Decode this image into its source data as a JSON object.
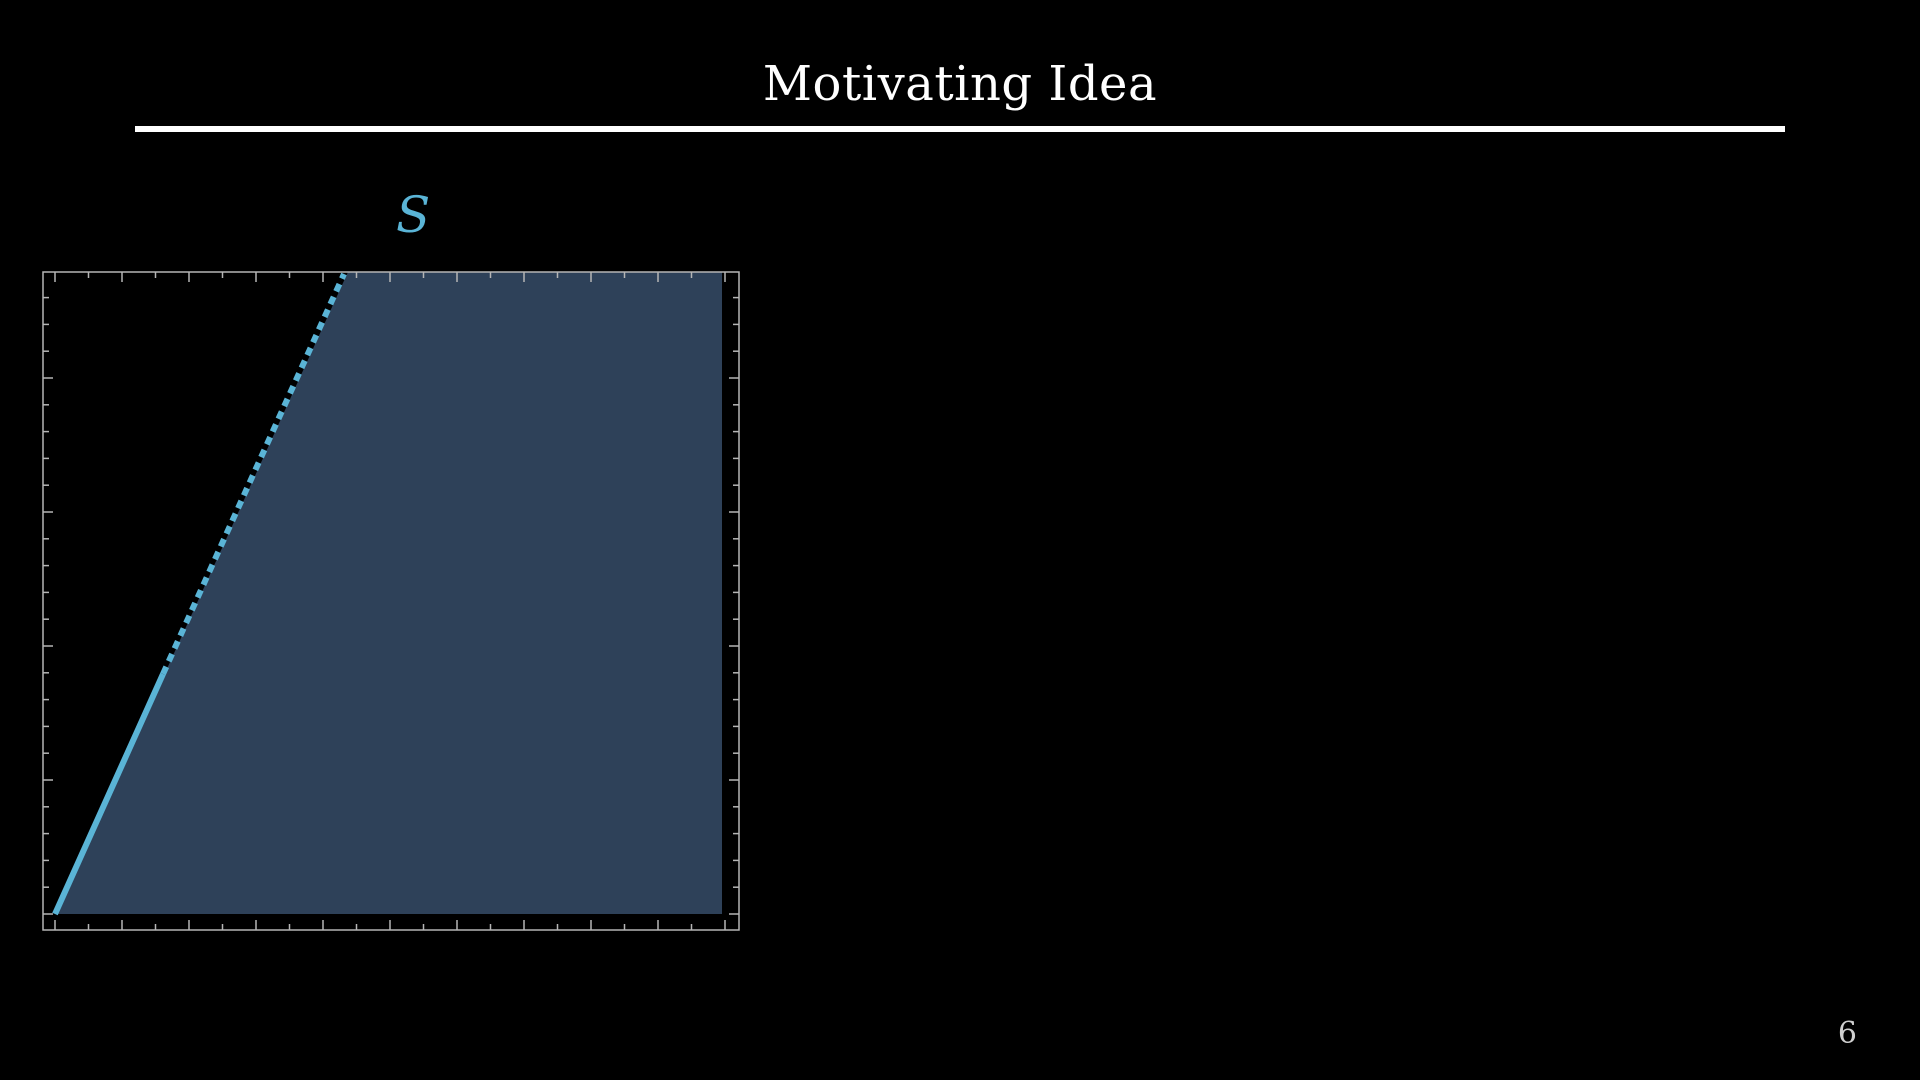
{
  "slide": {
    "title": "Motivating Idea",
    "set_label": "S",
    "page_number": "6"
  },
  "figure": {
    "region_fill": "#2e4159",
    "boundary_color": "#5ab4d6",
    "frame_color": "#b5b5b5"
  }
}
